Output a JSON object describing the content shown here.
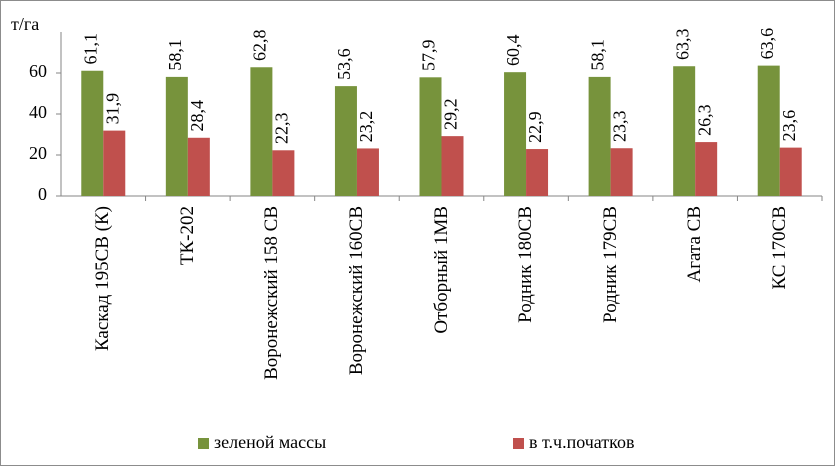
{
  "chart_data": {
    "type": "bar",
    "y_label": "т/га",
    "categories": [
      "Каскад 195СВ (К)",
      "ТК-202",
      "Воронежский 158 СВ",
      "Воронежский 160СВ",
      "Отборный 1МВ",
      "Родник 180СВ",
      "Родник 179СВ",
      "Агата СВ",
      "КС 170СВ"
    ],
    "series": [
      {
        "name": "зеленой массы",
        "color": "#77933c",
        "values": [
          61.1,
          58.1,
          62.8,
          53.6,
          57.9,
          60.4,
          58.1,
          63.3,
          63.6
        ],
        "value_labels": [
          "61,1",
          "58,1",
          "62,8",
          "53,6",
          "57,9",
          "60,4",
          "58,1",
          "63,3",
          "63,6"
        ]
      },
      {
        "name": "в т.ч.початков",
        "color": "#c0504d",
        "values": [
          31.9,
          28.4,
          22.3,
          23.2,
          29.2,
          22.9,
          23.3,
          26.3,
          23.6
        ],
        "value_labels": [
          "31,9",
          "28,4",
          "22,3",
          "23,2",
          "29,2",
          "22,9",
          "23,3",
          "26,3",
          "23,6"
        ]
      }
    ],
    "ylim": [
      0,
      80
    ],
    "yticks": [
      0,
      20,
      40,
      60
    ],
    "legend": "bottom"
  }
}
